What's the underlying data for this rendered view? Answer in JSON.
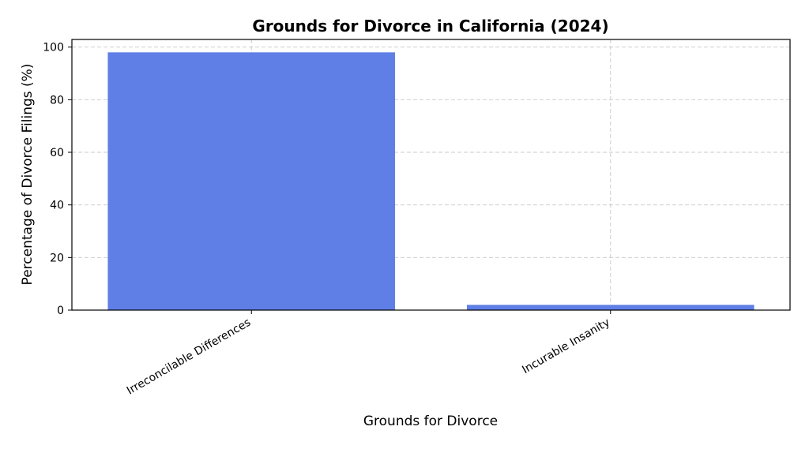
{
  "chart_data": {
    "type": "bar",
    "title": "Grounds for Divorce in California (2024)",
    "x_label": "Grounds for Divorce",
    "y_label": "Percentage of Divorce Filings (%)",
    "categories": [
      "Irreconcilable Differences",
      "Incurable Insanity"
    ],
    "values": [
      98,
      2
    ],
    "color": "#5f7fe6",
    "ylim": [
      0,
      102.9
    ],
    "yticks": [
      0,
      20,
      40,
      60,
      80,
      100
    ],
    "grid": true
  }
}
